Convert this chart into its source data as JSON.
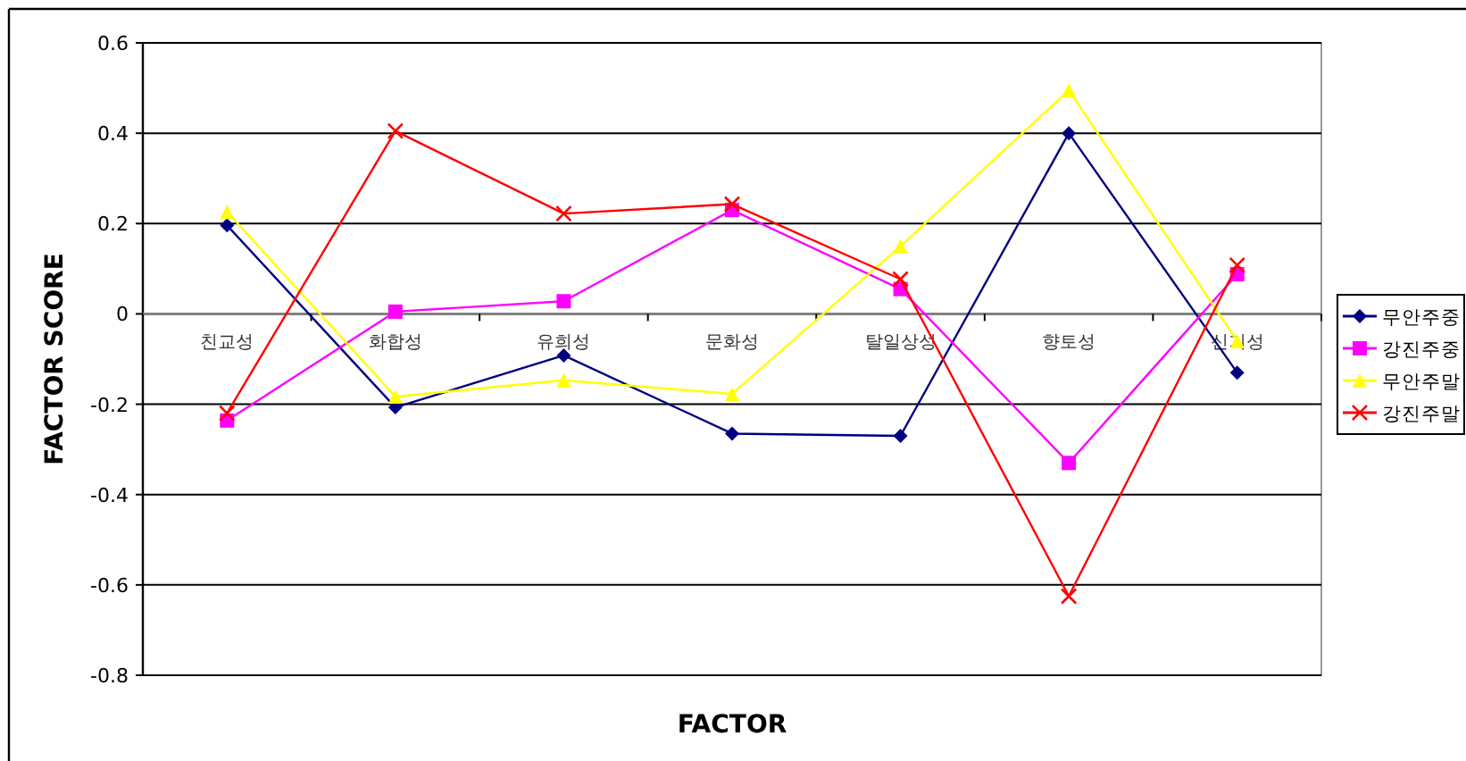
{
  "chart_data": {
    "type": "line",
    "xlabel": "FACTOR",
    "ylabel": "FACTOR SCORE",
    "categories": [
      "친교성",
      "화합성",
      "유희성",
      "문화성",
      "탈일상성",
      "향토성",
      "신기성"
    ],
    "series": [
      {
        "name": "무안주중",
        "color": "#000080",
        "marker": "diamond",
        "values": [
          0.196,
          -0.207,
          -0.092,
          -0.265,
          -0.27,
          0.4,
          -0.13
        ]
      },
      {
        "name": "강진주중",
        "color": "#ff00ff",
        "marker": "square",
        "values": [
          -0.236,
          0.005,
          0.028,
          0.23,
          0.055,
          -0.33,
          0.088
        ]
      },
      {
        "name": "무안주말",
        "color": "#ffff00",
        "marker": "triangle",
        "values": [
          0.226,
          -0.183,
          -0.147,
          -0.177,
          0.15,
          0.495,
          -0.06
        ]
      },
      {
        "name": "강진주말",
        "color": "#ff0000",
        "marker": "cross",
        "values": [
          -0.22,
          0.405,
          0.222,
          0.243,
          0.077,
          -0.625,
          0.108
        ]
      }
    ],
    "ylim": [
      -0.8,
      0.6
    ],
    "yticks": [
      -0.8,
      -0.6,
      -0.4,
      -0.2,
      0,
      0.2,
      0.4,
      0.6
    ],
    "grid": "y",
    "legend": "right"
  }
}
